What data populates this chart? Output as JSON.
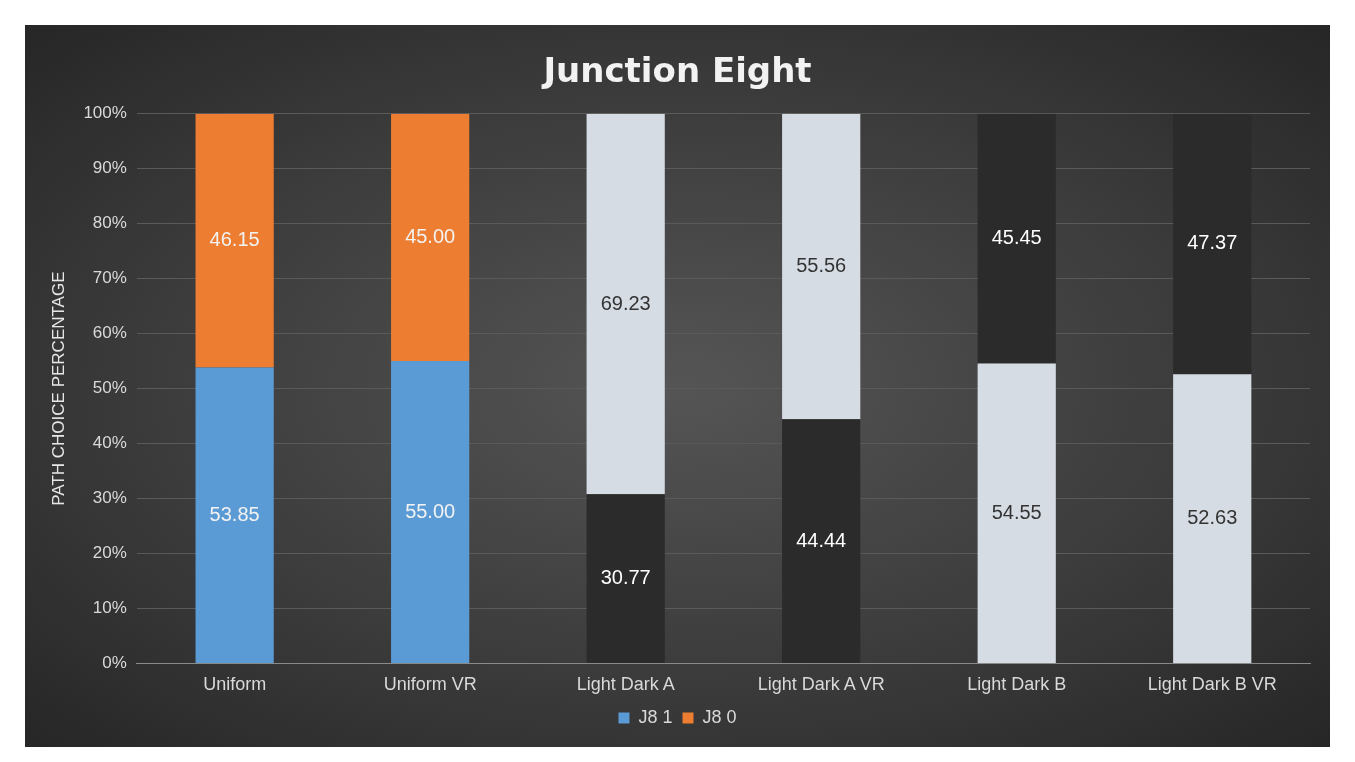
{
  "chart_data": {
    "type": "bar",
    "title": "Junction Eight",
    "ylabel": "PATH CHOICE PERCENTAGE",
    "stacked": true,
    "categories": [
      "Uniform",
      "Uniform VR",
      "Light Dark A",
      "Light Dark A VR",
      "Light Dark B",
      "Light Dark B VR"
    ],
    "series": [
      {
        "name": "J8 1",
        "color": "#5b9bd5",
        "colors": [
          "#5b9bd5",
          "#5b9bd5",
          "#2b2b2b",
          "#2b2b2b",
          "#d6dce4",
          "#d6dce4"
        ],
        "values": [
          53.85,
          55.0,
          30.77,
          44.44,
          54.55,
          52.63
        ],
        "value_labels": [
          "53.85",
          "55.00",
          "30.77",
          "44.44",
          "54.55",
          "52.63"
        ]
      },
      {
        "name": "J8 0",
        "color": "#ed7d31",
        "colors": [
          "#ed7d31",
          "#ed7d31",
          "#d6dce4",
          "#d6dce4",
          "#2b2b2b",
          "#2b2b2b"
        ],
        "values": [
          46.15,
          45.0,
          69.23,
          55.56,
          45.45,
          47.37
        ],
        "value_labels": [
          "46.15",
          "45.00",
          "69.23",
          "55.56",
          "45.45",
          "47.37"
        ]
      }
    ],
    "ylim": [
      0,
      100
    ],
    "yticks": [
      {
        "value": 0,
        "label": "0%"
      },
      {
        "value": 10,
        "label": "10%"
      },
      {
        "value": 20,
        "label": "20%"
      },
      {
        "value": 30,
        "label": "30%"
      },
      {
        "value": 40,
        "label": "40%"
      },
      {
        "value": 50,
        "label": "50%"
      },
      {
        "value": 60,
        "label": "60%"
      },
      {
        "value": 70,
        "label": "70%"
      },
      {
        "value": 80,
        "label": "80%"
      },
      {
        "value": 90,
        "label": "90%"
      },
      {
        "value": 100,
        "label": "100%"
      }
    ],
    "grid": "y",
    "legend": "bottom"
  }
}
